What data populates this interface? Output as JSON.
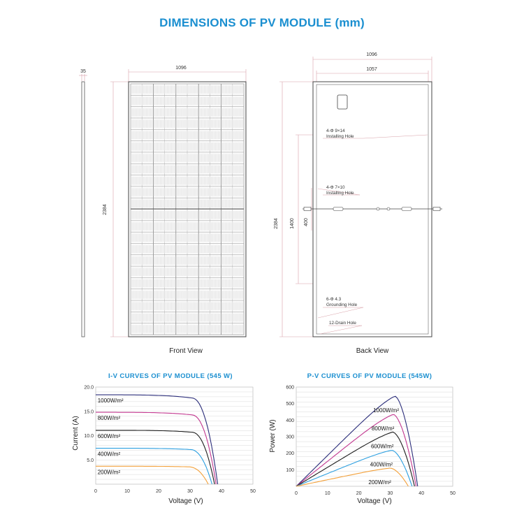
{
  "main_title": "DIMENSIONS OF PV MODULE (mm)",
  "drawings": {
    "side": {
      "thickness": "35",
      "length": "2384"
    },
    "front": {
      "width": "1096",
      "height": "2384",
      "label": "Front View"
    },
    "back": {
      "outer_width": "1096",
      "inner_width": "1057",
      "height": "2384",
      "hole_spacing_1": "1400",
      "hole_spacing_2": "400",
      "notes": [
        {
          "line1": "4-Φ 9×14",
          "line2": "Installing Hole"
        },
        {
          "line1": "4-Φ 7×10",
          "line2": "Installing Hole"
        },
        {
          "line1": "6-Φ 4.3",
          "line2": "Grounding Hole"
        },
        {
          "line1": "12-Drain Hole",
          "line2": ""
        }
      ],
      "label": "Back View"
    }
  },
  "chart_data": [
    {
      "type": "line",
      "title": "I-V CURVES OF PV MODULE (545 W)",
      "xlabel": "Voltage (V)",
      "ylabel": "Current (A)",
      "xlim": [
        0,
        50
      ],
      "ylim": [
        0,
        20
      ],
      "xticks": [
        "0",
        "10",
        "20",
        "30",
        "40",
        "50"
      ],
      "yticks": [
        "5.0",
        "10.0",
        "15.0",
        "20.0"
      ],
      "grid": true,
      "series": [
        {
          "name": "1000W/m²",
          "color": "#2b2d7a",
          "isc": 18.4,
          "voc": 38.8,
          "vk": 30.5
        },
        {
          "name": "800W/m²",
          "color": "#c2378f",
          "isc": 14.8,
          "voc": 38.3,
          "vk": 30.5
        },
        {
          "name": "600W/m²",
          "color": "#1e1e1e",
          "isc": 11.1,
          "voc": 37.8,
          "vk": 30.5
        },
        {
          "name": "400W/m²",
          "color": "#2c9fe0",
          "isc": 7.4,
          "voc": 37.0,
          "vk": 30.0
        },
        {
          "name": "200W/m²",
          "color": "#f3a13b",
          "isc": 3.7,
          "voc": 35.8,
          "vk": 29.5
        }
      ]
    },
    {
      "type": "line",
      "title": "P-V CURVES OF PV MODULE (545W)",
      "xlabel": "Voltage (V)",
      "ylabel": "Power (W)",
      "xlim": [
        0,
        50
      ],
      "ylim": [
        0,
        600
      ],
      "xticks": [
        "0",
        "10",
        "20",
        "30",
        "40",
        "50"
      ],
      "yticks": [
        "100",
        "200",
        "300",
        "400",
        "500",
        "600"
      ],
      "grid": true,
      "series": [
        {
          "name": "1000W/m²",
          "color": "#2b2d7a",
          "pmax": 545,
          "vmp": 31.5,
          "voc": 38.8
        },
        {
          "name": "800W/m²",
          "color": "#c2378f",
          "pmax": 435,
          "vmp": 31.0,
          "voc": 38.3
        },
        {
          "name": "600W/m²",
          "color": "#1e1e1e",
          "pmax": 328,
          "vmp": 30.8,
          "voc": 37.8
        },
        {
          "name": "400W/m²",
          "color": "#2c9fe0",
          "pmax": 218,
          "vmp": 30.5,
          "voc": 37.0
        },
        {
          "name": "200W/m²",
          "color": "#f3a13b",
          "pmax": 110,
          "vmp": 30.0,
          "voc": 35.8
        }
      ]
    }
  ]
}
